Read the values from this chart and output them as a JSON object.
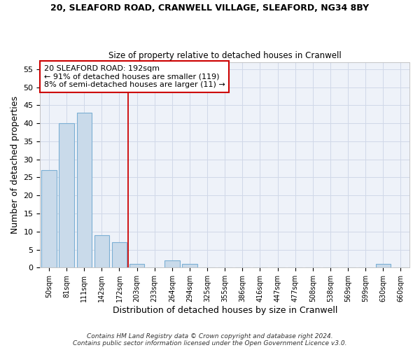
{
  "title_line1": "20, SLEAFORD ROAD, CRANWELL VILLAGE, SLEAFORD, NG34 8BY",
  "title_line2": "Size of property relative to detached houses in Cranwell",
  "xlabel": "Distribution of detached houses by size in Cranwell",
  "ylabel": "Number of detached properties",
  "bin_labels": [
    "50sqm",
    "81sqm",
    "111sqm",
    "142sqm",
    "172sqm",
    "203sqm",
    "233sqm",
    "264sqm",
    "294sqm",
    "325sqm",
    "355sqm",
    "386sqm",
    "416sqm",
    "447sqm",
    "477sqm",
    "508sqm",
    "538sqm",
    "569sqm",
    "599sqm",
    "630sqm",
    "660sqm"
  ],
  "bar_heights": [
    27,
    40,
    43,
    9,
    7,
    1,
    0,
    2,
    1,
    0,
    0,
    0,
    0,
    0,
    0,
    0,
    0,
    0,
    0,
    1,
    0
  ],
  "bar_color": "#c9daea",
  "bar_edge_color": "#7bafd4",
  "subject_line_label": "20 SLEAFORD ROAD: 192sqm",
  "annotation_line2": "← 91% of detached houses are smaller (119)",
  "annotation_line3": "8% of semi-detached houses are larger (11) →",
  "ylim": [
    0,
    57
  ],
  "yticks": [
    0,
    5,
    10,
    15,
    20,
    25,
    30,
    35,
    40,
    45,
    50,
    55
  ],
  "grid_color": "#d0d8e8",
  "bg_color": "#eef2f9",
  "fig_bg_color": "#ffffff",
  "footnote1": "Contains HM Land Registry data © Crown copyright and database right 2024.",
  "footnote2": "Contains public sector information licensed under the Open Government Licence v3.0."
}
